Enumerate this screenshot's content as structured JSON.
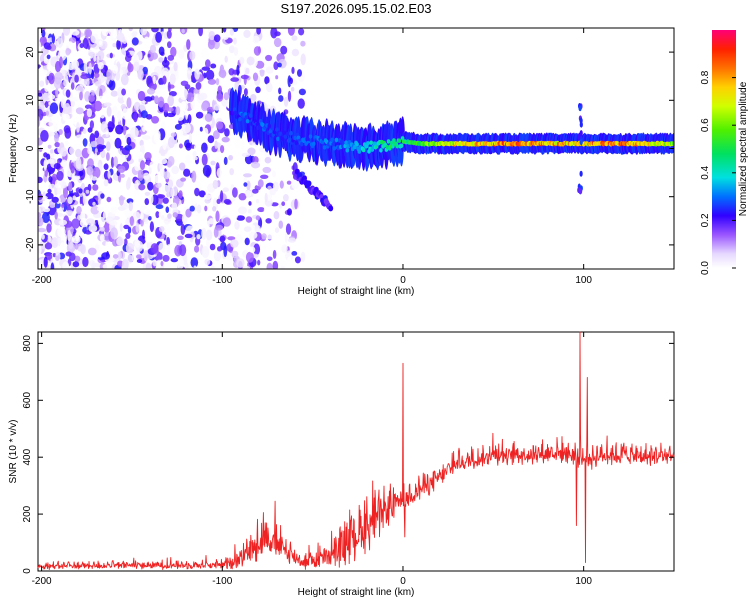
{
  "title": "S197.2026.095.15.02.E03",
  "chart_data": [
    {
      "type": "heatmap",
      "name": "spectrogram",
      "xlabel": "Height of straight line (km)",
      "ylabel": "Frequency (Hz)",
      "xlim": [
        -202,
        150
      ],
      "ylim": [
        -25,
        25
      ],
      "xticks": [
        -200,
        -100,
        0,
        100
      ],
      "yticks": [
        -20,
        -10,
        0,
        10,
        20
      ],
      "xtick_labels": [
        "-200",
        "-100",
        "0",
        "100"
      ],
      "ytick_labels": [
        "-20",
        "-10",
        "0",
        "10",
        "20"
      ],
      "colorbar": {
        "label": "Normalized spectral amplitude",
        "range": [
          0,
          1
        ],
        "ticks": [
          0.0,
          0.2,
          0.4,
          0.6,
          0.8
        ],
        "tick_labels": [
          "0.0",
          "0.2",
          "0.4",
          "0.6",
          "0.8"
        ]
      },
      "features": {
        "scattered_noise_range_km": [
          -202,
          -55
        ],
        "ridge_points": [
          {
            "x": -95,
            "f": 8,
            "amp": 0.25
          },
          {
            "x": -90,
            "f": 7,
            "amp": 0.3
          },
          {
            "x": -85,
            "f": 6,
            "amp": 0.3
          },
          {
            "x": -80,
            "f": 5,
            "amp": 0.3
          },
          {
            "x": -75,
            "f": 4,
            "amp": 0.3
          },
          {
            "x": -70,
            "f": 3,
            "amp": 0.3
          },
          {
            "x": -65,
            "f": 2.5,
            "amp": 0.3
          },
          {
            "x": -60,
            "f": 2,
            "amp": 0.3
          },
          {
            "x": -50,
            "f": 1.5,
            "amp": 0.3
          },
          {
            "x": -40,
            "f": 1,
            "amp": 0.32
          },
          {
            "x": -30,
            "f": 0.5,
            "amp": 0.35
          },
          {
            "x": -20,
            "f": 0.2,
            "amp": 0.4
          },
          {
            "x": -10,
            "f": 0.5,
            "amp": 0.5
          },
          {
            "x": 0,
            "f": 1.5,
            "amp": 0.5
          },
          {
            "x": 10,
            "f": 1,
            "amp": 0.6
          },
          {
            "x": 30,
            "f": 1,
            "amp": 0.8
          },
          {
            "x": 60,
            "f": 1,
            "amp": 0.9
          },
          {
            "x": 90,
            "f": 1,
            "amp": 0.85
          },
          {
            "x": 120,
            "f": 1,
            "amp": 0.9
          },
          {
            "x": 150,
            "f": 1,
            "amp": 0.7
          }
        ],
        "descending_streak": {
          "x_start": -60,
          "f_start": -5,
          "x_end": -40,
          "f_end": -12
        },
        "vertical_spike_x_km": 98
      }
    },
    {
      "type": "line",
      "name": "snr",
      "xlabel": "Height of straight line (km)",
      "ylabel": "SNR (10 * v/v)",
      "xlim": [
        -202,
        150
      ],
      "ylim": [
        0,
        840
      ],
      "xticks": [
        -200,
        -100,
        0,
        100
      ],
      "yticks": [
        0,
        200,
        400,
        600,
        800
      ],
      "xtick_labels": [
        "-200",
        "-100",
        "0",
        "100"
      ],
      "ytick_labels": [
        "0",
        "200",
        "400",
        "600",
        "800"
      ],
      "color": "#ee2222",
      "envelope": {
        "x": [
          -202,
          -100,
          -90,
          -75,
          -65,
          -55,
          -40,
          -30,
          -20,
          -10,
          0,
          10,
          20,
          30,
          50,
          70,
          90,
          100,
          110,
          130,
          150
        ],
        "base": [
          15,
          18,
          35,
          110,
          60,
          25,
          40,
          80,
          140,
          190,
          240,
          280,
          320,
          370,
          400,
          400,
          410,
          380,
          400,
          395,
          395
        ],
        "spread": [
          20,
          25,
          60,
          120,
          80,
          40,
          80,
          130,
          150,
          120,
          80,
          70,
          60,
          50,
          55,
          60,
          70,
          80,
          60,
          60,
          60
        ]
      },
      "peaks": [
        {
          "x": 0,
          "y": 730
        },
        {
          "x": 98,
          "y": 840
        },
        {
          "x": 102,
          "y": 680
        }
      ],
      "dips": [
        {
          "x": 1,
          "y": 120
        },
        {
          "x": 96,
          "y": 160
        },
        {
          "x": 101,
          "y": 30
        }
      ]
    }
  ]
}
